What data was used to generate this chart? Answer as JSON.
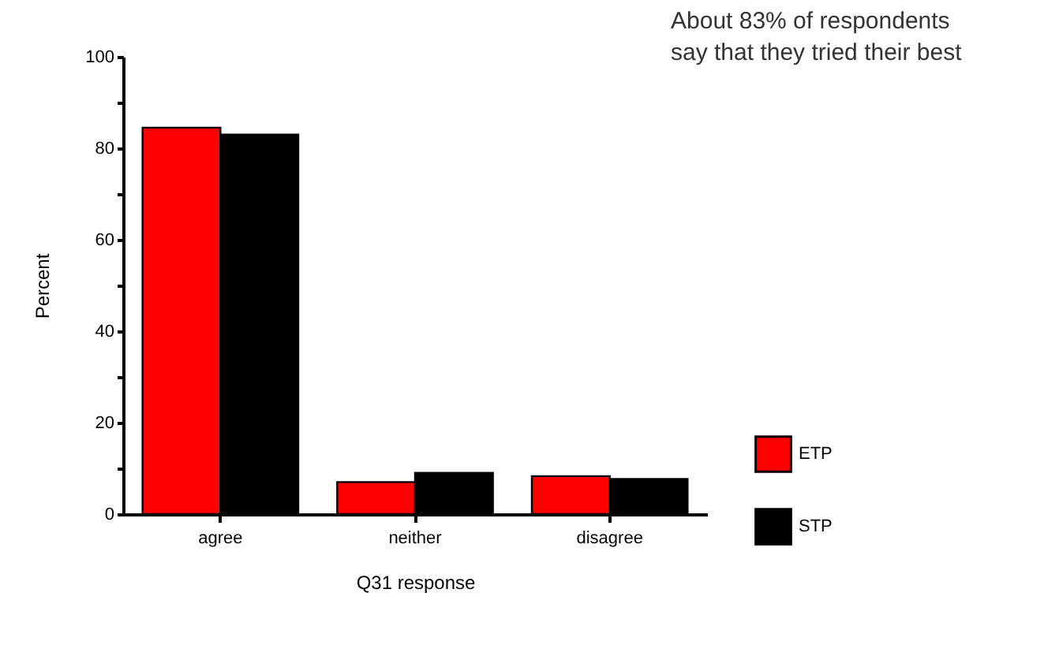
{
  "chart_data": {
    "type": "bar",
    "xlabel": "Q31 response",
    "ylabel": "Percent",
    "annotations": [
      "About 83% of respondents\nsay that they tried their best"
    ],
    "categories": [
      "agree",
      "neither",
      "disagree"
    ],
    "series": [
      {
        "name": "ETP",
        "color": "#ff0000",
        "values": [
          84.5,
          7,
          8.3
        ]
      },
      {
        "name": "STP",
        "color": "#000000",
        "values": [
          83,
          9,
          7.7
        ]
      }
    ],
    "ylim": [
      0,
      100
    ],
    "yticks": [
      0,
      {
        "value": 10,
        "label": null
      },
      20,
      {
        "value": 30,
        "label": null
      },
      40,
      {
        "value": 50,
        "label": null
      },
      60,
      {
        "value": 70,
        "label": null
      },
      80,
      {
        "value": 90,
        "label": null
      },
      100
    ],
    "grid": false,
    "legend": "bottom right"
  }
}
